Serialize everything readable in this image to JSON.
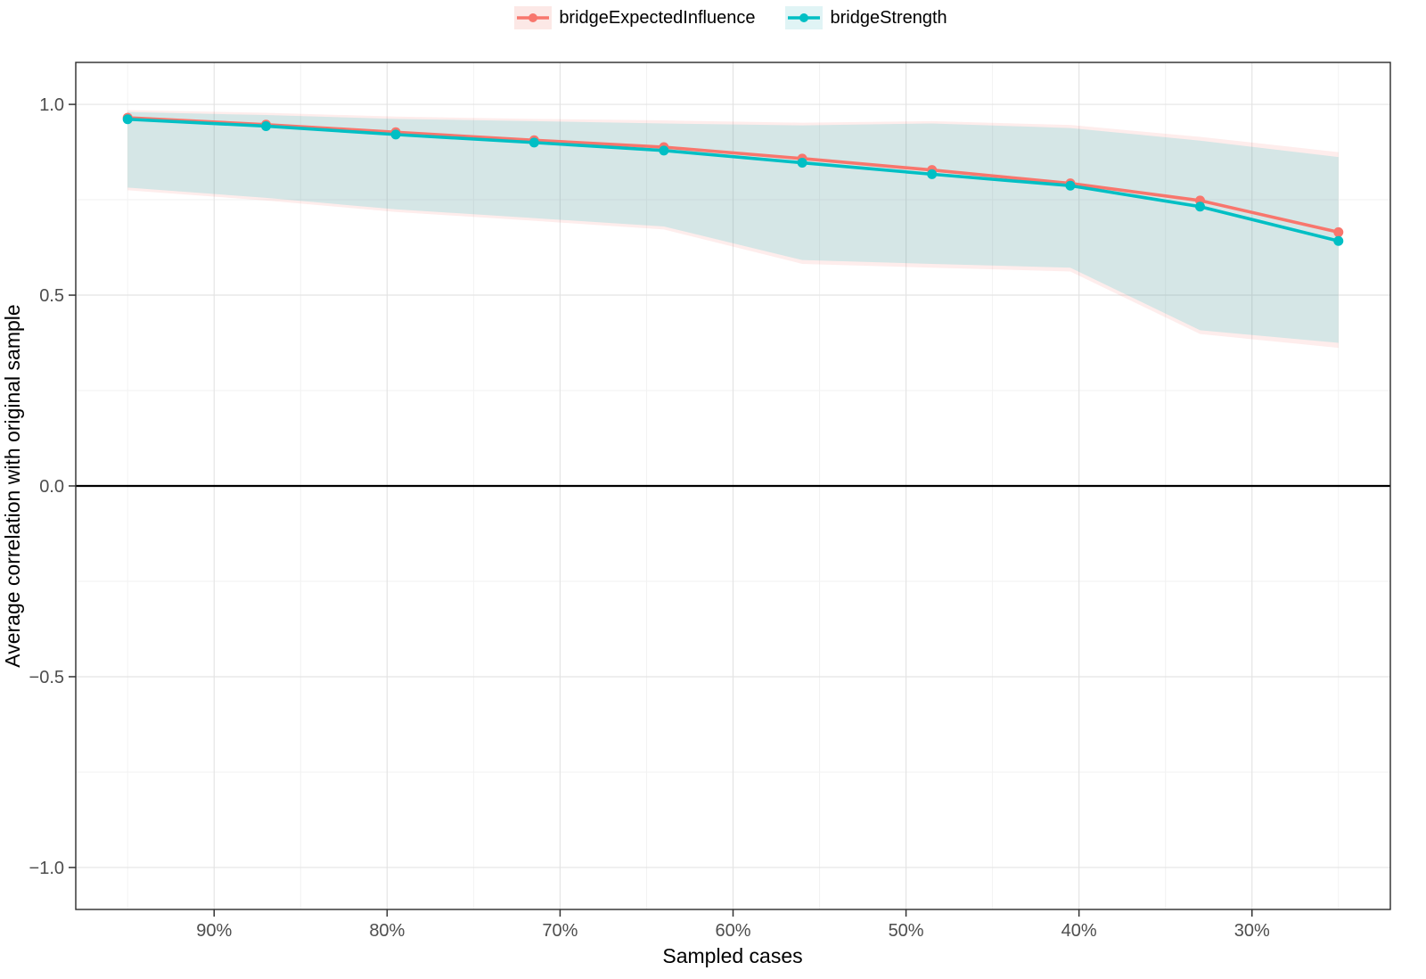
{
  "page": {
    "background": "#ffffff"
  },
  "legend": {
    "position": "top",
    "items": [
      "bridgeExpectedInfluence",
      "bridgeStrength"
    ]
  },
  "chart_data": {
    "type": "line",
    "title": "",
    "xlabel": "Sampled cases",
    "ylabel": "Average correlation with original sample",
    "x_axis": {
      "reversed": true,
      "range": [
        98,
        22
      ],
      "ticks": [
        90,
        80,
        70,
        60,
        50,
        40,
        30
      ],
      "tick_labels": [
        "90%",
        "80%",
        "70%",
        "60%",
        "50%",
        "40%",
        "30%"
      ],
      "minor_ticks": [
        95,
        85,
        75,
        65,
        55,
        45,
        35,
        25
      ]
    },
    "y_axis": {
      "range": [
        -1.11,
        1.11
      ],
      "ticks": [
        1.0,
        0.5,
        0.0,
        -0.5,
        -1.0
      ],
      "tick_labels": [
        "1.0",
        "0.5",
        "0.0",
        "−0.5",
        "−1.0"
      ],
      "minor_ticks": [
        0.75,
        0.25,
        -0.25,
        -0.75
      ]
    },
    "zero_line": 0,
    "grid": {
      "major_color": "#e4e4e4",
      "minor_color": "#f2f2f2",
      "on": true
    },
    "x": [
      95,
      87,
      79.5,
      71.5,
      64,
      56,
      48.5,
      40.5,
      33,
      25
    ],
    "series": [
      {
        "name": "bridgeExpectedInfluence",
        "color": "#F8766D",
        "ribbon_color": "rgba(248,118,109,0.13)",
        "key_color": "#FCE8E6",
        "values": [
          0.965,
          0.947,
          0.927,
          0.906,
          0.888,
          0.858,
          0.828,
          0.793,
          0.748,
          0.665
        ],
        "lower": [
          0.775,
          0.748,
          0.718,
          0.695,
          0.672,
          0.582,
          0.572,
          0.562,
          0.398,
          0.362
        ],
        "upper": [
          0.985,
          0.978,
          0.968,
          0.962,
          0.958,
          0.952,
          0.956,
          0.946,
          0.915,
          0.875
        ]
      },
      {
        "name": "bridgeStrength",
        "color": "#00BFC4",
        "ribbon_color": "rgba(0,191,196,0.16)",
        "key_color": "#E0F4F5",
        "values": [
          0.961,
          0.943,
          0.921,
          0.9,
          0.879,
          0.847,
          0.817,
          0.787,
          0.732,
          0.642
        ],
        "lower": [
          0.782,
          0.755,
          0.725,
          0.702,
          0.68,
          0.592,
          0.582,
          0.572,
          0.408,
          0.375
        ],
        "upper": [
          0.98,
          0.972,
          0.962,
          0.956,
          0.95,
          0.945,
          0.95,
          0.938,
          0.905,
          0.862
        ]
      }
    ]
  }
}
